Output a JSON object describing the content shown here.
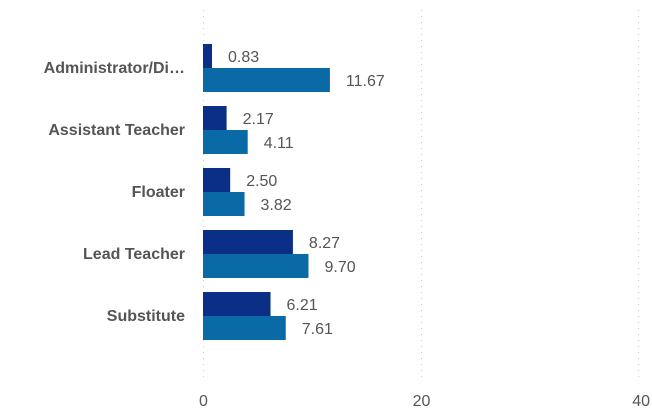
{
  "chart_data": {
    "type": "bar",
    "orientation": "horizontal",
    "categories": [
      "Administrator/Di…",
      "Assistant Teacher",
      "Floater",
      "Lead Teacher",
      "Substitute"
    ],
    "series": [
      {
        "values": [
          0.83,
          2.17,
          2.5,
          8.27,
          6.21
        ],
        "color": "#0b2f87"
      },
      {
        "values": [
          11.67,
          4.11,
          3.82,
          9.7,
          7.61
        ],
        "color": "#0a6aa6"
      }
    ],
    "value_labels": [
      [
        "0.83",
        "2.17",
        "2.50",
        "8.27",
        "6.21"
      ],
      [
        "11.67",
        "4.11",
        "3.82",
        "9.70",
        "7.61"
      ]
    ],
    "xlim": [
      0,
      40
    ],
    "x_ticks": [
      0,
      20,
      40
    ],
    "x_tick_labels": [
      "0",
      "20",
      "40"
    ],
    "grid": true,
    "legend": "none"
  }
}
